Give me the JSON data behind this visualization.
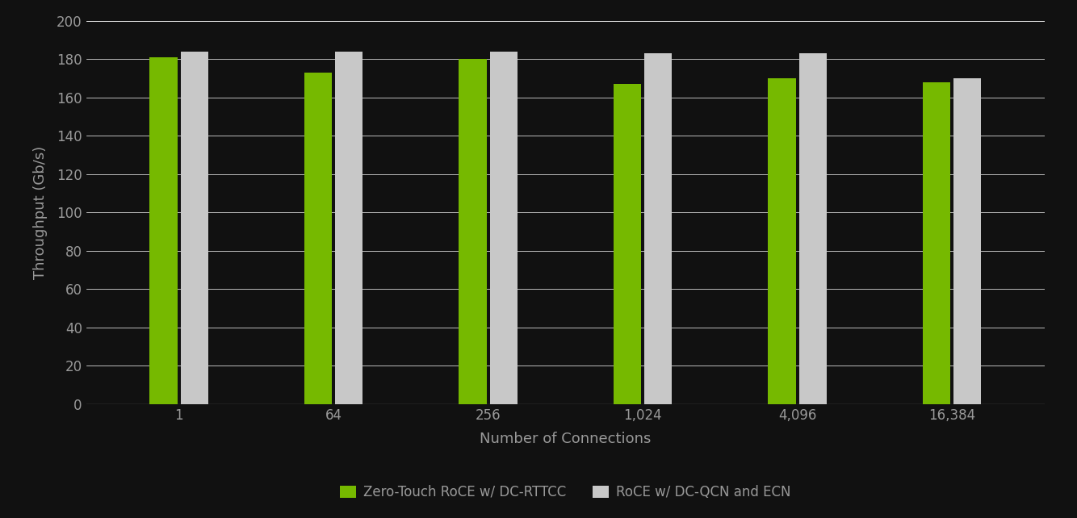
{
  "categories": [
    "1",
    "64",
    "256",
    "1,024",
    "4,096",
    "16,384"
  ],
  "ztr_values": [
    181,
    173,
    180,
    167,
    170,
    168
  ],
  "roce_values": [
    184,
    184,
    184,
    183,
    183,
    170
  ],
  "ztr_color": "#76b900",
  "roce_color": "#c8c8c8",
  "background_color": "#111111",
  "text_color": "#999999",
  "grid_color": "#ffffff",
  "xlabel": "Number of Connections",
  "ylabel": "Throughput (Gb/s)",
  "ylim": [
    0,
    200
  ],
  "yticks": [
    0,
    20,
    40,
    60,
    80,
    100,
    120,
    140,
    160,
    180,
    200
  ],
  "legend_label_ztr": "Zero-Touch RoCE w/ DC-RTTCC",
  "legend_label_roce": "RoCE w/ DC-QCN and ECN",
  "bar_width": 0.18,
  "bar_gap": 0.02,
  "xlabel_fontsize": 13,
  "ylabel_fontsize": 13,
  "tick_fontsize": 12,
  "legend_fontsize": 12
}
